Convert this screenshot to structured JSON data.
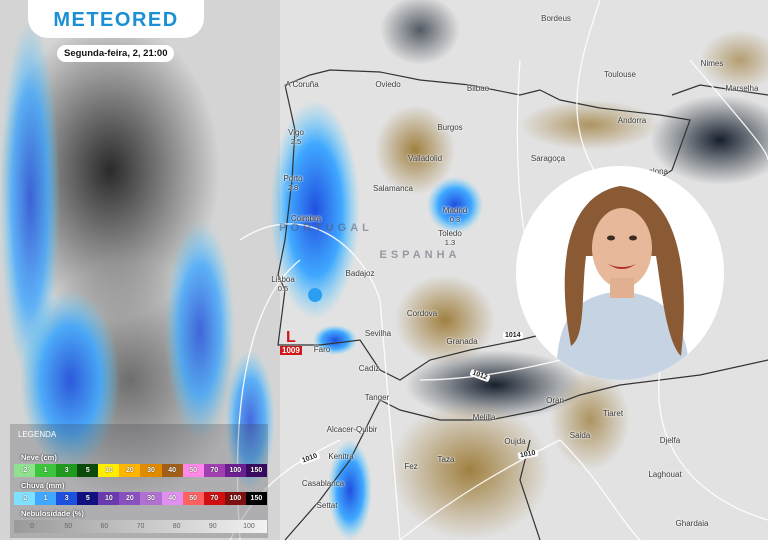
{
  "brand": "METEORED",
  "datetime": "Segunda-feira, 2, 21:00",
  "cities": [
    {
      "name": "Bordeus"
    },
    {
      "name": "Toulouse"
    },
    {
      "name": "Nimes"
    },
    {
      "name": "Marselha"
    },
    {
      "name": "A Coruña"
    },
    {
      "name": "Oviedo"
    },
    {
      "name": "Bilbao"
    },
    {
      "name": "Burgos"
    },
    {
      "name": "Andorra"
    },
    {
      "name": "Saragoça"
    },
    {
      "name": "Barcelona"
    },
    {
      "name": "Vigo",
      "value": "2.5"
    },
    {
      "name": "Valladolid"
    },
    {
      "name": "Porto",
      "value": "2.8"
    },
    {
      "name": "Salamanca"
    },
    {
      "name": "Madrid",
      "value": "0.3"
    },
    {
      "name": "Toledo",
      "value": "1.3"
    },
    {
      "name": "Coimbra"
    },
    {
      "name": "Badajoz"
    },
    {
      "name": "Lisboa",
      "value": "0.5"
    },
    {
      "name": "Cordova"
    },
    {
      "name": "Sevilha"
    },
    {
      "name": "Granada"
    },
    {
      "name": "Faro"
    },
    {
      "name": "Cadiz"
    },
    {
      "name": "Tanger"
    },
    {
      "name": "Melilla"
    },
    {
      "name": "Oran"
    },
    {
      "name": "Tiaret"
    },
    {
      "name": "Saida"
    },
    {
      "name": "Oujda"
    },
    {
      "name": "Djelfa"
    },
    {
      "name": "Alcacer-Quibir"
    },
    {
      "name": "Kenitra"
    },
    {
      "name": "Taza"
    },
    {
      "name": "Fez"
    },
    {
      "name": "Laghouat"
    },
    {
      "name": "Casablanca"
    },
    {
      "name": "Settat"
    },
    {
      "name": "Ghardaia"
    }
  ],
  "countries": {
    "portugal": "PORTUGAL",
    "spain": "ESPANHA"
  },
  "isobars": [
    "1014",
    "1012",
    "1010",
    "1010"
  ],
  "low_pressure": {
    "symbol": "L",
    "value": "1009"
  },
  "legend": {
    "title": "LEGENDA",
    "snow": {
      "label": "Neve (cm)",
      "ticks": [
        ".2",
        "1",
        "3",
        "5",
        "10",
        "20",
        "30",
        "40",
        "50",
        "70",
        "100",
        "150"
      ],
      "colors": [
        "#8fe08f",
        "#3cc43c",
        "#1f9a1f",
        "#0c4a0c",
        "#ffee00",
        "#ffb400",
        "#e08a00",
        "#a0601a",
        "#ff88e8",
        "#a040b0",
        "#6a2090",
        "#3a0a60"
      ]
    },
    "rain": {
      "label": "Chuva (mm)",
      "ticks": [
        ".2",
        "1",
        "3",
        "5",
        "10",
        "20",
        "30",
        "40",
        "50",
        "70",
        "100",
        "150"
      ],
      "colors": [
        "#7fe0ff",
        "#40a8ff",
        "#1e50e0",
        "#101080",
        "#6a3ab0",
        "#8a50c0",
        "#b070d0",
        "#e090f0",
        "#ff6060",
        "#d01010",
        "#801010",
        "#000000"
      ]
    },
    "clouds": {
      "label": "Nebulosidade (%)",
      "ticks": [
        "0",
        "50",
        "60",
        "70",
        "80",
        "90",
        "100"
      ]
    }
  }
}
